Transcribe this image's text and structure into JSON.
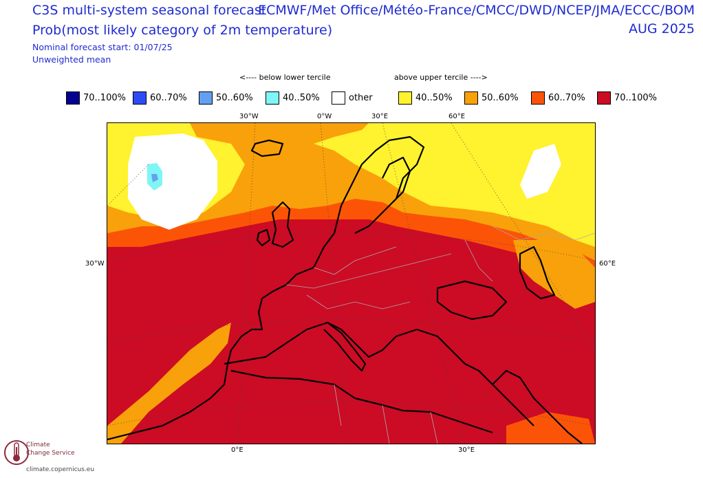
{
  "header": {
    "title": "C3S multi-system seasonal forecast",
    "subtitle": "Prob(most likely category of 2m temperature)",
    "forecast_start": "Nominal forecast start: 01/07/25",
    "weighting": "Unweighted mean",
    "sources": "ECMWF/Met Office/Météo-France/CMCC/DWD/NCEP/JMA/ECCC/BOM",
    "valid_month": "AUG 2025"
  },
  "legend": {
    "below_label": "<---- below lower tercile",
    "above_label": "above upper tercile ---->",
    "items": [
      {
        "label": "70..100%",
        "color": "#04028e"
      },
      {
        "label": "60..70%",
        "color": "#2b4cf5"
      },
      {
        "label": "50..60%",
        "color": "#63a0f2"
      },
      {
        "label": "40..50%",
        "color": "#7ff5f5"
      },
      {
        "label": "other",
        "color": "#ffffff"
      },
      {
        "label": "40..50%",
        "color": "#fff22e"
      },
      {
        "label": "50..60%",
        "color": "#f9a10a"
      },
      {
        "label": "60..70%",
        "color": "#fb5407"
      },
      {
        "label": "70..100%",
        "color": "#cc0b25"
      }
    ]
  },
  "map": {
    "region": "Europe",
    "ticks_top": [
      "30°W",
      "0°W",
      "30°E",
      "60°E"
    ],
    "ticks_bottom": [
      "0°E",
      "30°E"
    ],
    "tick_left": "30°W",
    "tick_right": "60°E"
  },
  "logo": {
    "line1": "Climate",
    "line2": "Change Service",
    "url": "climate.copernicus.eu",
    "color": "#8c2a3c"
  }
}
